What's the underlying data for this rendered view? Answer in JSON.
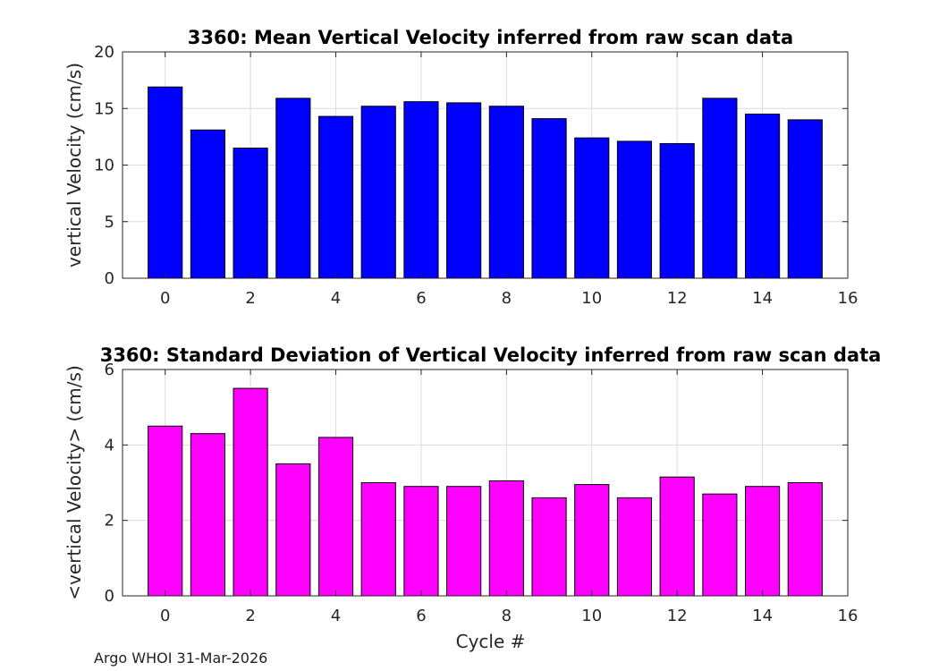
{
  "figure": {
    "footer_text": "Argo WHOI 31-Mar-2026"
  },
  "chart_data": [
    {
      "type": "bar",
      "title": "3360: Mean Vertical Velocity inferred from raw scan data",
      "xlabel": "",
      "ylabel": "vertical Velocity (cm/s)",
      "x": [
        0,
        1,
        2,
        3,
        4,
        5,
        6,
        7,
        8,
        9,
        10,
        11,
        12,
        13,
        14,
        15
      ],
      "values": [
        16.9,
        13.1,
        11.5,
        15.9,
        14.3,
        15.2,
        15.6,
        15.5,
        15.2,
        14.1,
        12.4,
        12.1,
        11.9,
        15.9,
        14.5,
        14.0
      ],
      "xlim": [
        -1,
        16
      ],
      "ylim": [
        0,
        20
      ],
      "xticks": [
        0,
        2,
        4,
        6,
        8,
        10,
        12,
        14,
        16
      ],
      "yticks": [
        0,
        5,
        10,
        15,
        20
      ],
      "bar_color": "#0000ff",
      "grid": true
    },
    {
      "type": "bar",
      "title": "3360: Standard Deviation of Vertical Velocity inferred from raw scan data",
      "xlabel": "Cycle #",
      "ylabel": "<vertical Velocity> (cm/s)",
      "x": [
        0,
        1,
        2,
        3,
        4,
        5,
        6,
        7,
        8,
        9,
        10,
        11,
        12,
        13,
        14,
        15
      ],
      "values": [
        4.5,
        4.3,
        5.5,
        3.5,
        4.2,
        3.0,
        2.9,
        2.9,
        3.05,
        2.6,
        2.95,
        2.6,
        3.15,
        2.7,
        2.9,
        3.0
      ],
      "xlim": [
        -1,
        16
      ],
      "ylim": [
        0,
        6
      ],
      "xticks": [
        0,
        2,
        4,
        6,
        8,
        10,
        12,
        14,
        16
      ],
      "yticks": [
        0,
        2,
        4,
        6
      ],
      "bar_color": "#ff00ff",
      "grid": true
    }
  ]
}
